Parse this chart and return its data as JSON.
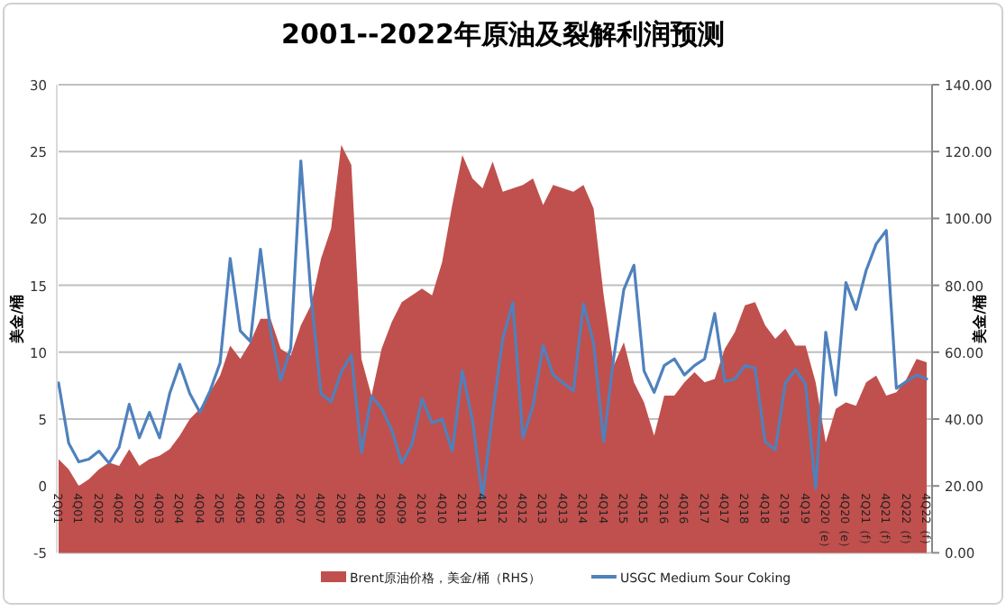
{
  "chart_data": {
    "type": "line",
    "title": "2001--2022年原油及裂解利润预测",
    "categories": [
      "2Q01",
      null,
      "4Q01",
      null,
      "2Q02",
      null,
      "4Q02",
      null,
      "2Q03",
      null,
      "4Q03",
      null,
      "2Q04",
      null,
      "4Q04",
      null,
      "2Q05",
      null,
      "4Q05",
      null,
      "2Q06",
      null,
      "4Q06",
      null,
      "2Q07",
      null,
      "4Q07",
      null,
      "2Q08",
      null,
      "4Q08",
      null,
      "2Q09",
      null,
      "4Q09",
      null,
      "2Q10",
      null,
      "4Q10",
      null,
      "2Q11",
      null,
      "4Q11",
      null,
      "2Q12",
      null,
      "4Q12",
      null,
      "2Q13",
      null,
      "4Q13",
      null,
      "2Q14",
      null,
      "4Q14",
      null,
      "2Q15",
      null,
      "4Q15",
      null,
      "2Q16",
      null,
      "4Q16",
      null,
      "2Q17",
      null,
      "4Q17",
      null,
      "2Q18",
      null,
      "4Q18",
      null,
      "2Q19",
      null,
      "4Q19",
      null,
      "2Q20（e）",
      null,
      "4Q20（e）",
      null,
      "2Q21（f）",
      null,
      "4Q21（f）",
      null,
      "2Q22（f）",
      null,
      "4Q22（f）"
    ],
    "series": [
      {
        "name": "Brent原油价格，美金/桶（RHS）",
        "type": "area",
        "axis": "y2",
        "color": "#c0504d",
        "values": [
          28,
          25,
          20,
          22,
          25,
          27,
          26,
          31,
          26,
          28,
          29,
          31,
          35,
          40,
          43,
          48,
          53,
          62,
          58,
          63,
          70,
          70,
          61,
          59,
          68,
          74,
          88,
          97,
          122,
          116,
          58,
          47,
          61,
          69,
          75,
          77,
          79,
          77,
          87,
          104,
          119,
          112,
          109,
          117,
          108,
          109,
          110,
          112,
          104,
          110,
          109,
          108,
          110,
          103,
          77,
          56,
          63,
          51,
          45,
          35,
          47,
          47,
          51,
          54,
          51,
          52,
          61,
          66,
          74,
          75,
          68,
          64,
          67,
          62,
          62,
          51,
          33,
          43,
          45,
          44,
          51,
          53,
          47,
          48,
          52,
          58,
          57
        ]
      },
      {
        "name": "USGC Medium Sour Coking",
        "axis": "y",
        "color": "#4f81bd",
        "values": [
          7.7,
          3.2,
          1.8,
          2.0,
          2.6,
          1.7,
          2.9,
          6.1,
          3.6,
          5.5,
          3.6,
          6.9,
          9.1,
          6.9,
          5.5,
          7.1,
          9.2,
          17.0,
          11.6,
          10.8,
          17.7,
          11.6,
          7.9,
          10.3,
          24.3,
          14.3,
          6.9,
          6.3,
          8.5,
          9.8,
          2.5,
          6.7,
          5.8,
          4.2,
          1.7,
          3.1,
          6.5,
          4.7,
          5.0,
          2.6,
          8.6,
          4.9,
          -0.9,
          5.4,
          11.0,
          13.7,
          3.6,
          6.0,
          10.5,
          8.3,
          7.7,
          7.1,
          13.6,
          10.7,
          3.3,
          9.6,
          14.7,
          16.5,
          8.6,
          7.0,
          9.0,
          9.5,
          8.3,
          9.0,
          9.5,
          12.9,
          7.8,
          8.0,
          9.0,
          8.8,
          3.3,
          2.7,
          7.7,
          8.7,
          7.6,
          -0.2,
          11.5,
          6.8,
          15.2,
          13.2,
          16.1,
          18.1,
          19.1,
          7.3,
          7.8,
          8.3,
          8.0
        ]
      }
    ],
    "ylabel": "美金/桶",
    "y2label": "美金/桶",
    "ylim": [
      -5,
      30
    ],
    "yticks": [
      -5,
      0,
      5,
      10,
      15,
      20,
      25,
      30
    ],
    "y2lim": [
      0,
      140
    ],
    "y2ticks": [
      {
        "value": 0,
        "label": "0.00"
      },
      {
        "value": 20,
        "label": "20.00"
      },
      {
        "value": 40,
        "label": "40.00"
      },
      {
        "value": 60,
        "label": "60.00"
      },
      {
        "value": 80,
        "label": "80.00"
      },
      {
        "value": 100,
        "label": "100.00"
      },
      {
        "value": 120,
        "label": "120.00"
      },
      {
        "value": 140,
        "label": "140.00"
      }
    ],
    "grid": "y",
    "legend": "bottom",
    "marker": "none",
    "line_style": "solid"
  }
}
